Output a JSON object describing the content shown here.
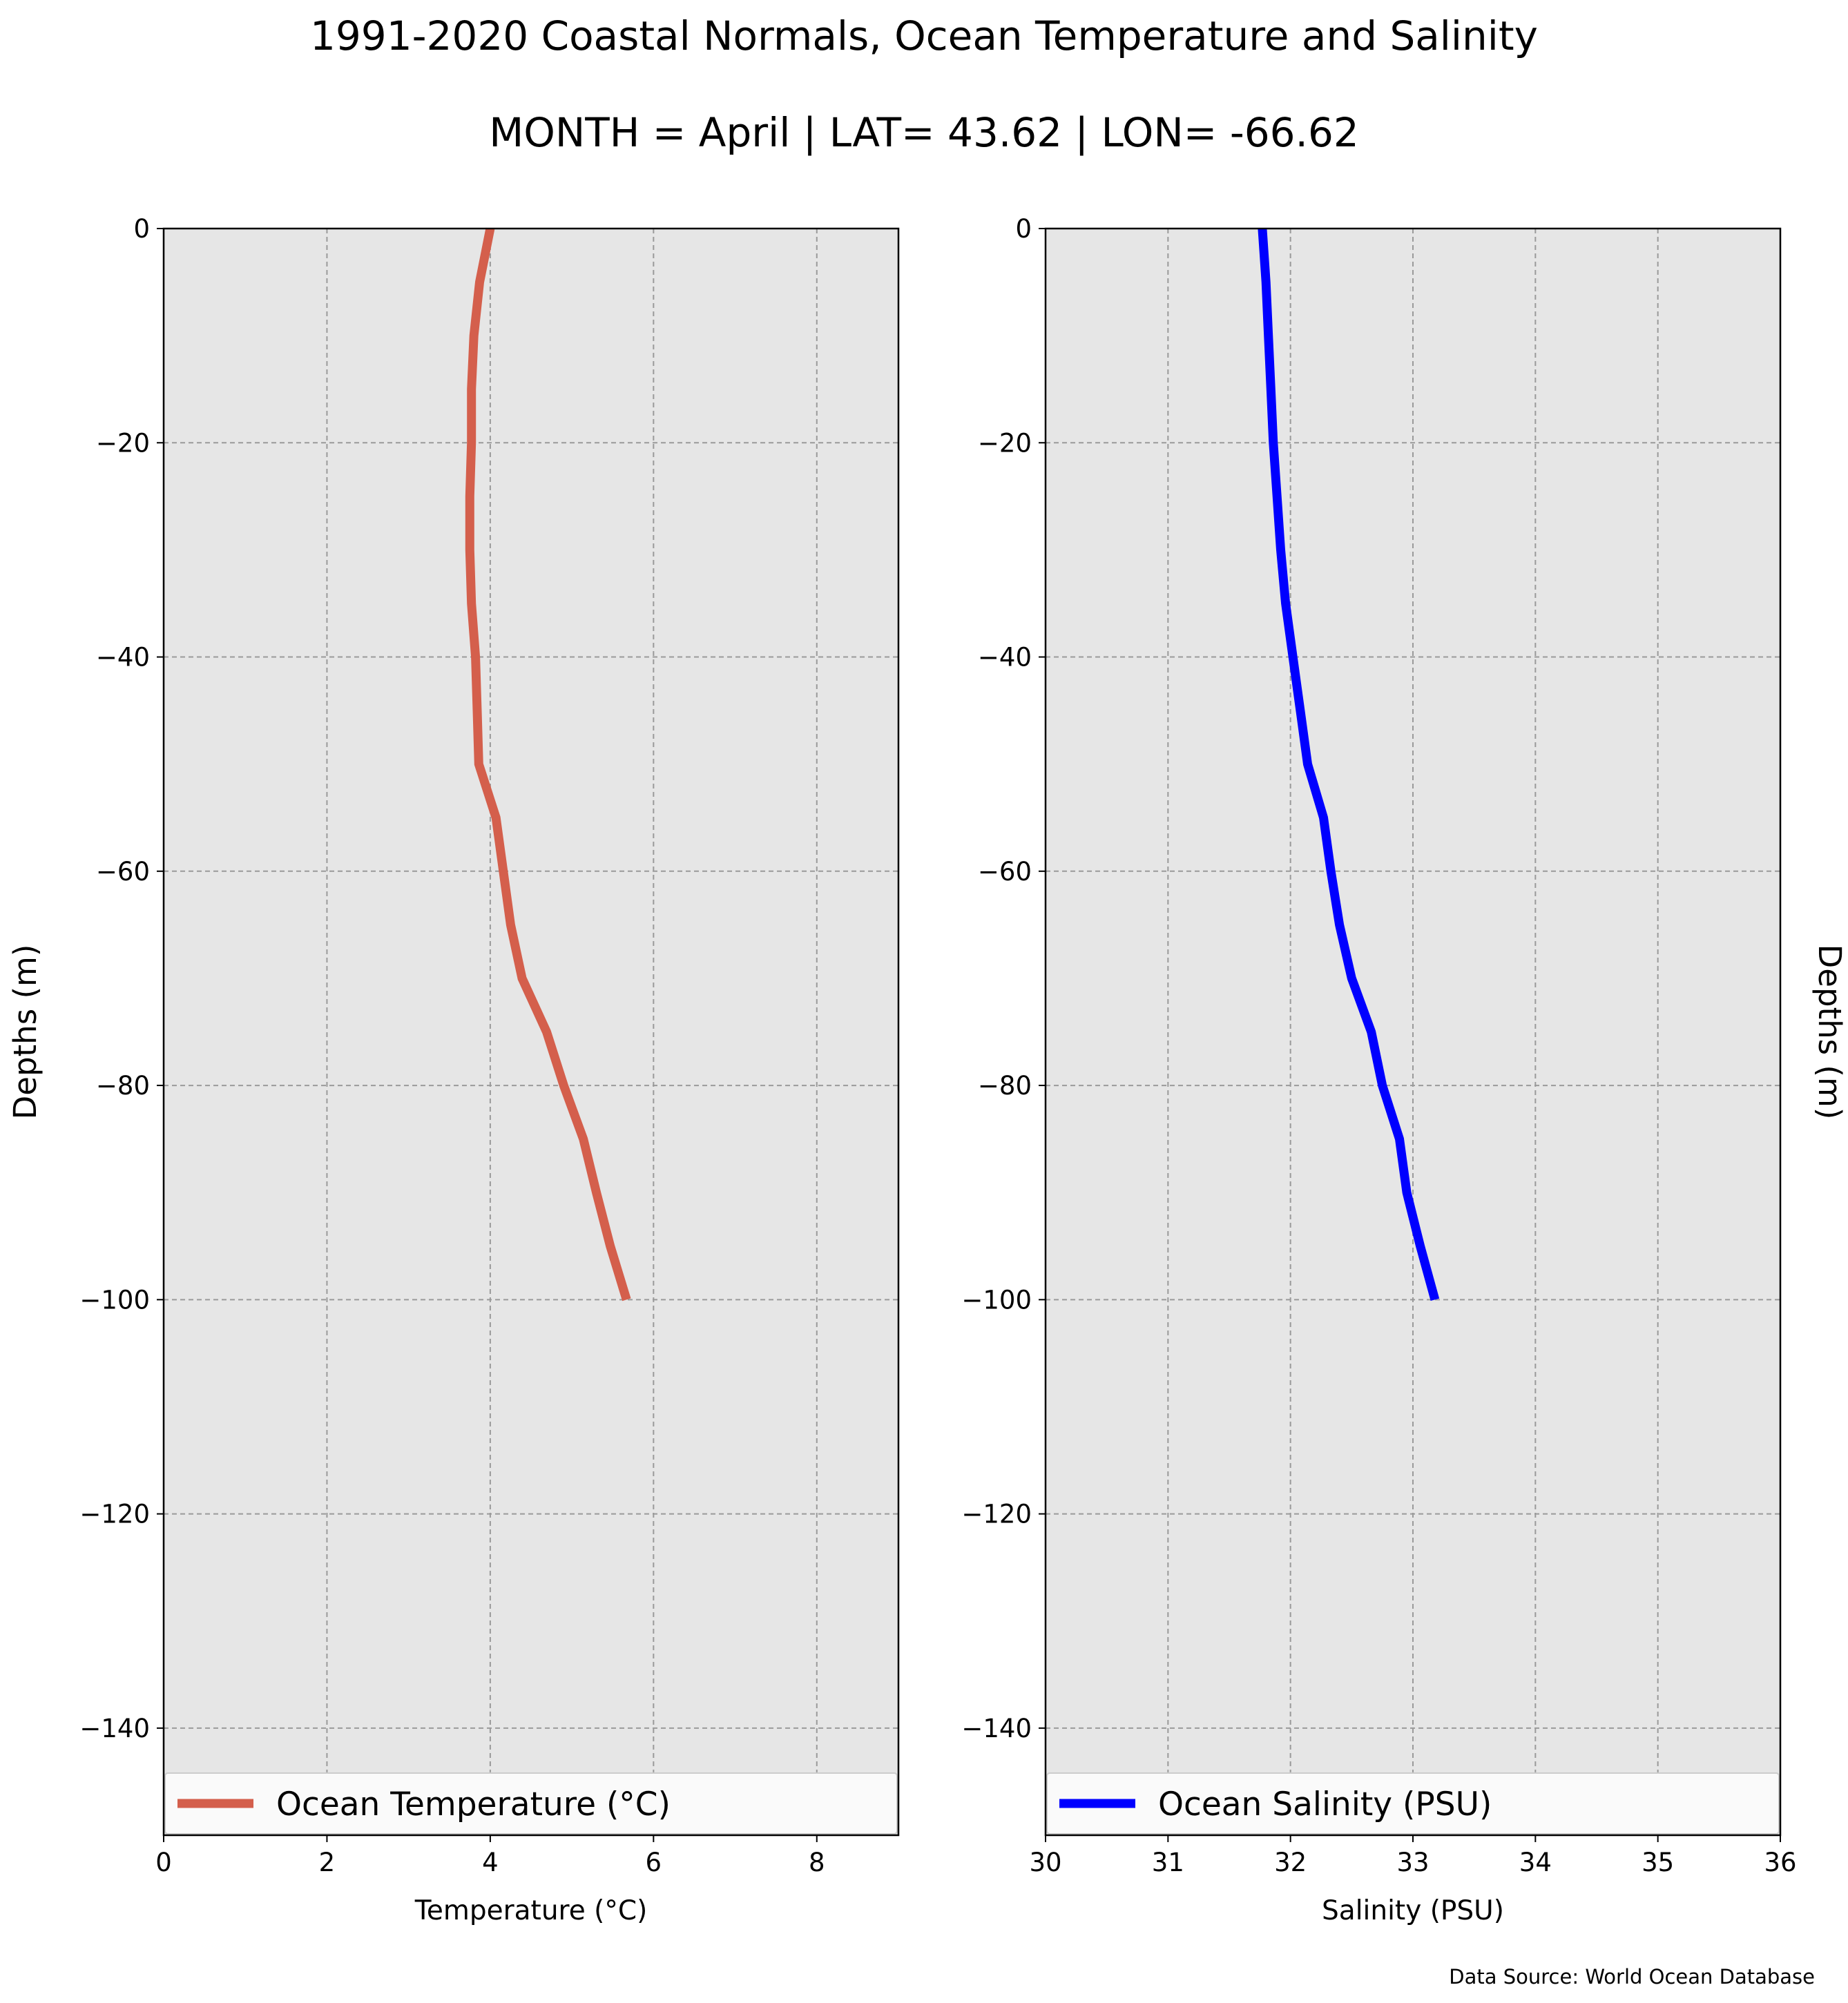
{
  "title": "1991-2020 Coastal Normals, Ocean Temperature and Salinity",
  "subtitle": "MONTH = April | LAT= 43.62 | LON= -66.62",
  "source_note": "Data Source: World Ocean Database",
  "colors": {
    "panel_background": "#e6e6e6",
    "temperature_line": "#d45f4c",
    "salinity_line": "#0000ff",
    "grid": "#9a9a9a"
  },
  "chart_data": [
    {
      "type": "line",
      "title": "",
      "xlabel": "Temperature ($^\\circ$C)",
      "ylabel": "Depths (m)",
      "xlim": [
        0,
        9
      ],
      "ylim": [
        -150,
        0
      ],
      "xticks": [
        0,
        2,
        4,
        6,
        8
      ],
      "xtick_labels": [
        "0",
        "2",
        "4",
        "6",
        "8"
      ],
      "yticks": [
        0,
        -20,
        -40,
        -60,
        -80,
        -100,
        -120,
        -140
      ],
      "ytick_labels": [
        "0",
        "−20",
        "−40",
        "−60",
        "−80",
        "−100",
        "−120",
        "−140"
      ],
      "grid": true,
      "legend_position": "lower center",
      "series": [
        {
          "name": "Ocean Temperature ($^\\circ$C)",
          "x": [
            4.0,
            3.87,
            3.8,
            3.77,
            3.77,
            3.75,
            3.75,
            3.77,
            3.82,
            3.84,
            3.86,
            4.07,
            4.16,
            4.25,
            4.39,
            4.69,
            4.9,
            5.14,
            5.3,
            5.47,
            5.67
          ],
          "y": [
            0,
            -5,
            -10,
            -15,
            -20,
            -25,
            -30,
            -35,
            -40,
            -45,
            -50,
            -55,
            -60,
            -65,
            -70,
            -75,
            -80,
            -85,
            -90,
            -95,
            -100
          ]
        }
      ]
    },
    {
      "type": "line",
      "title": "",
      "xlabel": "Salinity (PSU)",
      "ylabel": "Depths (m)",
      "xlim": [
        30,
        36
      ],
      "ylim": [
        -150,
        0
      ],
      "xticks": [
        30,
        31,
        32,
        33,
        34,
        35,
        36
      ],
      "xtick_labels": [
        "30",
        "31",
        "32",
        "33",
        "34",
        "35",
        "36"
      ],
      "yticks": [
        0,
        -20,
        -40,
        -60,
        -80,
        -100,
        -120,
        -140
      ],
      "ytick_labels": [
        "0",
        "−20",
        "−40",
        "−60",
        "−80",
        "−100",
        "−120",
        "−140"
      ],
      "grid": true,
      "legend_position": "lower center",
      "series": [
        {
          "name": "Ocean Salinity (PSU)",
          "x": [
            31.77,
            31.8,
            31.82,
            31.84,
            31.86,
            31.89,
            31.92,
            31.96,
            32.02,
            32.08,
            32.14,
            32.27,
            32.33,
            32.4,
            32.5,
            32.66,
            32.75,
            32.89,
            32.95,
            33.06,
            33.18
          ],
          "y": [
            0,
            -5,
            -10,
            -15,
            -20,
            -25,
            -30,
            -35,
            -40,
            -45,
            -50,
            -55,
            -60,
            -65,
            -70,
            -75,
            -80,
            -85,
            -90,
            -95,
            -100
          ]
        }
      ]
    }
  ]
}
